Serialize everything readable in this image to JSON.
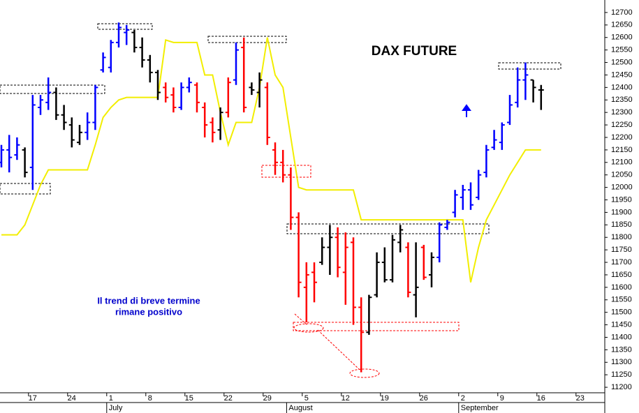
{
  "chart_data": {
    "type": "ohlc",
    "title": "DAX FUTURE",
    "annotations": [
      "Il trend di breve termine",
      "rimane positivo"
    ],
    "categories": [
      null,
      null,
      null,
      null,
      "17",
      null,
      null,
      null,
      null,
      "24",
      null,
      null,
      null,
      null,
      "1",
      null,
      null,
      null,
      null,
      "8",
      null,
      null,
      null,
      null,
      "15",
      null,
      null,
      null,
      null,
      "22",
      null,
      null,
      null,
      null,
      "29",
      null,
      null,
      null,
      null,
      "5",
      null,
      null,
      null,
      null,
      "12",
      null,
      null,
      null,
      null,
      "19",
      null,
      null,
      null,
      null,
      "26",
      null,
      null,
      null,
      null,
      "2",
      null,
      null,
      null,
      null,
      "9",
      null,
      null,
      null,
      null,
      "16",
      null,
      null,
      null,
      null,
      "23",
      null,
      null
    ],
    "month_labels": [
      null,
      null,
      null,
      null,
      null,
      null,
      null,
      null,
      null,
      null,
      null,
      null,
      null,
      null,
      "July",
      null,
      null,
      null,
      null,
      null,
      null,
      null,
      null,
      null,
      null,
      null,
      null,
      null,
      null,
      null,
      null,
      null,
      null,
      null,
      null,
      null,
      null,
      "August",
      null,
      null,
      null,
      null,
      null,
      null,
      null,
      null,
      null,
      null,
      null,
      null,
      null,
      null,
      null,
      null,
      null,
      null,
      null,
      null,
      null,
      "September",
      null,
      null,
      null,
      null,
      null,
      null,
      null,
      null,
      null,
      null,
      null,
      null,
      null,
      null,
      null,
      null,
      null
    ],
    "open": [
      12100,
      12150,
      12130,
      12150,
      12080,
      12320,
      12340,
      12380,
      12290,
      12250,
      12180,
      12220,
      12260,
      12470,
      12480,
      12580,
      12620,
      12620,
      12560,
      12510,
      12460,
      12400,
      12370,
      12320,
      12400,
      12410,
      12320,
      12260,
      12230,
      12300,
      12430,
      12560,
      12400,
      12380,
      12400,
      12150,
      12100,
      12050,
      11880,
      11600,
      11660,
      11700,
      11760,
      11800,
      11660,
      11780,
      11520,
      11420,
      11570,
      11700,
      11630,
      11780,
      11760,
      11570,
      11760,
      11650,
      11720,
      11840,
      11900,
      11960,
      11990,
      11960,
      12060,
      12160,
      12180,
      12260,
      12340,
      12430,
      12430,
      12390,
      null,
      null,
      null,
      null,
      null,
      null,
      null
    ],
    "high": [
      12170,
      12210,
      12200,
      12160,
      12370,
      12370,
      12440,
      12400,
      12330,
      12280,
      12250,
      12300,
      12410,
      12540,
      12590,
      12660,
      12650,
      12630,
      12600,
      12530,
      12470,
      12420,
      12400,
      12420,
      12440,
      12420,
      12340,
      12280,
      12320,
      12440,
      12580,
      12600,
      12420,
      12460,
      12420,
      12180,
      12150,
      12080,
      11900,
      11700,
      11700,
      11800,
      11850,
      11840,
      11820,
      11800,
      11560,
      11570,
      11740,
      11760,
      11810,
      11850,
      11780,
      11780,
      11770,
      11740,
      11860,
      11870,
      11990,
      12010,
      12020,
      12070,
      12170,
      12230,
      12260,
      12370,
      12480,
      12500,
      12430,
      12410,
      null,
      null,
      null,
      null,
      null,
      null,
      null
    ],
    "low": [
      12080,
      12060,
      12110,
      12040,
      11990,
      12290,
      12310,
      12270,
      12230,
      12160,
      12170,
      12190,
      12230,
      12460,
      12460,
      12560,
      12570,
      12540,
      12480,
      12420,
      12350,
      12340,
      12300,
      12310,
      12380,
      12300,
      12200,
      12180,
      12190,
      12280,
      12410,
      12300,
      12370,
      12320,
      12170,
      12050,
      12020,
      11830,
      11560,
      11460,
      11540,
      11690,
      11650,
      11640,
      11530,
      11450,
      11260,
      11410,
      11560,
      11620,
      11620,
      11740,
      11560,
      11480,
      11630,
      11600,
      11700,
      11830,
      11880,
      11910,
      11910,
      11950,
      12040,
      12150,
      12150,
      12250,
      12320,
      12350,
      12340,
      12310,
      null,
      null,
      null,
      null,
      null,
      null,
      null
    ],
    "close": [
      12150,
      12120,
      12170,
      12060,
      12330,
      12350,
      12380,
      12290,
      12260,
      12190,
      12220,
      12260,
      12400,
      12520,
      12580,
      12640,
      12630,
      12560,
      12510,
      12460,
      12380,
      12360,
      12320,
      12400,
      12420,
      12340,
      12250,
      12220,
      12300,
      12420,
      12550,
      12320,
      12390,
      12430,
      12200,
      12100,
      12050,
      11880,
      11620,
      11650,
      11620,
      11760,
      11800,
      11680,
      11760,
      11520,
      11420,
      11560,
      11700,
      11630,
      11790,
      11830,
      11580,
      11600,
      11640,
      11720,
      11850,
      11860,
      11970,
      11990,
      11930,
      12050,
      12150,
      12190,
      12250,
      12330,
      12430,
      12450,
      12400,
      12390,
      null,
      null,
      null,
      null,
      null,
      null,
      null
    ],
    "bar_colors": [
      "#0000ff",
      "#0000ff",
      "#0000ff",
      "#000000",
      "#0000ff",
      "#0000ff",
      "#0000ff",
      "#000000",
      "#000000",
      "#000000",
      "#000000",
      "#0000ff",
      "#0000ff",
      "#0000ff",
      "#0000ff",
      "#0000ff",
      "#0000ff",
      "#000000",
      "#000000",
      "#000000",
      "#000000",
      "#ff0000",
      "#ff0000",
      "#0000ff",
      "#0000ff",
      "#ff0000",
      "#ff0000",
      "#ff0000",
      "#000000",
      "#ff0000",
      "#0000ff",
      "#ff0000",
      "#000000",
      "#000000",
      "#ff0000",
      "#ff0000",
      "#ff0000",
      "#ff0000",
      "#ff0000",
      "#ff0000",
      "#ff0000",
      "#000000",
      "#000000",
      "#ff0000",
      "#ff0000",
      "#ff0000",
      "#ff0000",
      "#000000",
      "#000000",
      "#000000",
      "#000000",
      "#000000",
      "#ff0000",
      "#000000",
      "#ff0000",
      "#000000",
      "#0000ff",
      "#0000ff",
      "#0000ff",
      "#0000ff",
      "#0000ff",
      "#0000ff",
      "#0000ff",
      "#0000ff",
      "#0000ff",
      "#0000ff",
      "#0000ff",
      "#0000ff",
      "#000000",
      "#000000",
      null,
      null,
      null,
      null,
      null,
      null,
      null
    ],
    "line": {
      "color": "#f2ee00",
      "values": [
        11810,
        11810,
        11810,
        11850,
        11930,
        12010,
        12070,
        12070,
        12070,
        12070,
        12070,
        12070,
        12170,
        12280,
        12320,
        12350,
        12360,
        12360,
        12360,
        12360,
        12360,
        12590,
        12580,
        12580,
        12580,
        12580,
        12450,
        12450,
        12300,
        12170,
        12260,
        12260,
        12260,
        12400,
        12600,
        12450,
        12400,
        12200,
        12000,
        11990,
        11990,
        11990,
        11990,
        11990,
        11990,
        11990,
        11870,
        11870,
        11870,
        11870,
        11870,
        11870,
        11870,
        11870,
        11870,
        11870,
        11870,
        11870,
        11870,
        11870,
        11620,
        11760,
        11870,
        11930,
        11990,
        12050,
        12100,
        12150,
        12150,
        12150,
        null,
        null,
        null,
        null,
        null,
        null,
        null
      ]
    },
    "ylim": [
      11178,
      12750
    ],
    "yticks": [
      11200,
      11250,
      11300,
      11350,
      11400,
      11450,
      11500,
      11550,
      11600,
      11650,
      11700,
      11750,
      11800,
      11850,
      11900,
      11950,
      12000,
      12050,
      12100,
      12150,
      12200,
      12250,
      12300,
      12350,
      12400,
      12450,
      12500,
      12550,
      12600,
      12650,
      12700
    ],
    "grid": false
  }
}
